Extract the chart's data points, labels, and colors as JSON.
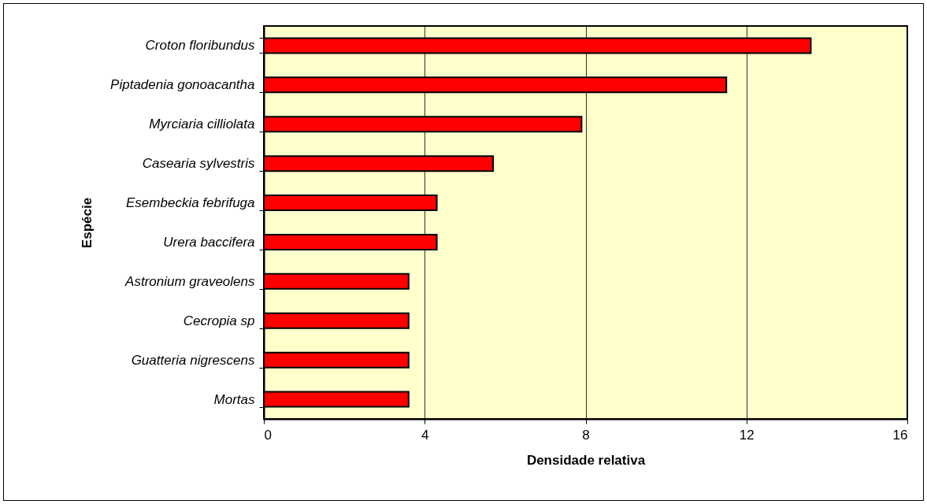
{
  "chart_data": {
    "type": "bar",
    "orientation": "horizontal",
    "xlabel": "Densidade relativa",
    "ylabel": "Espécie",
    "categories": [
      "Croton floribundus",
      "Piptadenia gonoacantha",
      "Myrciaria cilliolata",
      "Casearia sylvestris",
      "Esembeckia febrifuga",
      "Urera baccifera",
      "Astronium graveolens",
      "Cecropia sp",
      "Guatteria nigrescens",
      "Mortas"
    ],
    "values": [
      13.6,
      11.5,
      7.9,
      5.7,
      4.3,
      4.3,
      3.6,
      3.6,
      3.6,
      3.6
    ],
    "color": "#ff0000",
    "xlim": [
      0,
      16
    ],
    "xticks": [
      0,
      4,
      8,
      12,
      16
    ],
    "grid": "x"
  }
}
